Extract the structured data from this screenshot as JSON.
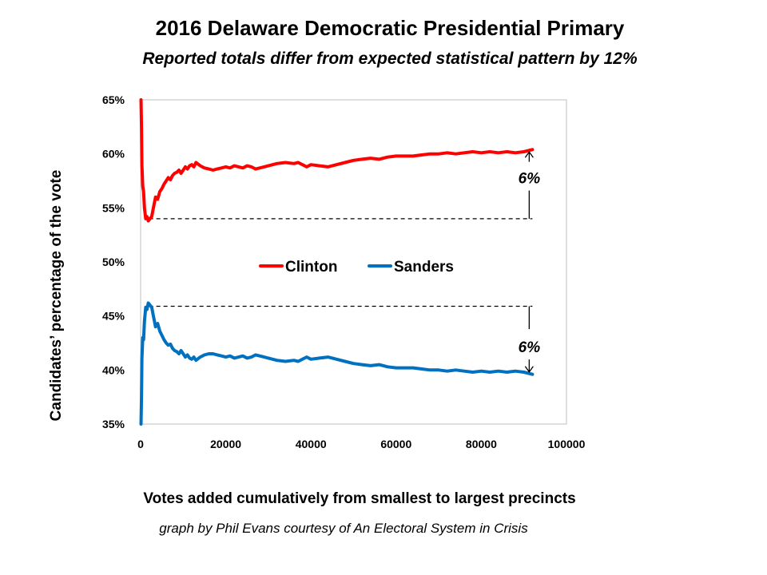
{
  "chart_data": {
    "type": "line",
    "title": "2016 Delaware Democratic Presidential Primary",
    "subtitle": "Reported totals differ from expected statistical pattern by 12%",
    "xlabel": "Votes added cumulatively from smallest to largest precincts",
    "ylabel": "Candidates’ percentage of the vote",
    "credit": "graph by Phil Evans courtesy of An Electoral System in Crisis",
    "xlim": [
      0,
      100000
    ],
    "ylim": [
      35,
      65
    ],
    "x_ticks": [
      "0",
      "20000",
      "40000",
      "60000",
      "80000",
      "100000"
    ],
    "y_ticks": [
      "35%",
      "40%",
      "45%",
      "50%",
      "55%",
      "60%",
      "65%"
    ],
    "grid": false,
    "legend": "center",
    "series": [
      {
        "name": "Clinton",
        "color": "#ff0000",
        "x": [
          100,
          200,
          300,
          500,
          700,
          900,
          1200,
          1500,
          1800,
          2200,
          2600,
          3000,
          3500,
          4000,
          4500,
          5000,
          5500,
          6000,
          6500,
          7000,
          7500,
          8000,
          8500,
          9000,
          9500,
          10000,
          10500,
          11000,
          11500,
          12000,
          12500,
          13000,
          14000,
          15000,
          16000,
          17000,
          18000,
          19000,
          20000,
          21000,
          22000,
          23000,
          24000,
          25000,
          26000,
          27000,
          28000,
          29000,
          30000,
          32000,
          34000,
          36000,
          37000,
          38000,
          39000,
          40000,
          42000,
          44000,
          46000,
          48000,
          50000,
          52000,
          54000,
          56000,
          58000,
          60000,
          62000,
          64000,
          66000,
          68000,
          70000,
          72000,
          74000,
          76000,
          78000,
          80000,
          82000,
          84000,
          86000,
          88000,
          90000,
          92000
        ],
        "values": [
          65,
          62.5,
          59,
          57,
          56.5,
          55,
          54,
          54.2,
          53.8,
          54,
          54.2,
          55,
          56,
          55.8,
          56.5,
          56.8,
          57.2,
          57.5,
          57.8,
          57.6,
          58,
          58.2,
          58.3,
          58.5,
          58.2,
          58.5,
          58.8,
          58.6,
          58.9,
          59,
          58.8,
          59.2,
          58.9,
          58.7,
          58.6,
          58.5,
          58.6,
          58.7,
          58.8,
          58.7,
          58.9,
          58.8,
          58.7,
          58.9,
          58.8,
          58.6,
          58.7,
          58.8,
          58.9,
          59.1,
          59.2,
          59.1,
          59.2,
          59,
          58.8,
          59,
          58.9,
          58.8,
          59,
          59.2,
          59.4,
          59.5,
          59.6,
          59.5,
          59.7,
          59.8,
          59.8,
          59.8,
          59.9,
          60,
          60,
          60.1,
          60,
          60.1,
          60.2,
          60.1,
          60.2,
          60.1,
          60.2,
          60.1,
          60.2,
          60.4
        ]
      },
      {
        "name": "Sanders",
        "color": "#0070c0",
        "x": [
          100,
          200,
          300,
          500,
          700,
          900,
          1200,
          1500,
          1800,
          2200,
          2600,
          3000,
          3500,
          4000,
          4500,
          5000,
          5500,
          6000,
          6500,
          7000,
          7500,
          8000,
          8500,
          9000,
          9500,
          10000,
          10500,
          11000,
          11500,
          12000,
          12500,
          13000,
          14000,
          15000,
          16000,
          17000,
          18000,
          19000,
          20000,
          21000,
          22000,
          23000,
          24000,
          25000,
          26000,
          27000,
          28000,
          29000,
          30000,
          32000,
          34000,
          36000,
          37000,
          38000,
          39000,
          40000,
          42000,
          44000,
          46000,
          48000,
          50000,
          52000,
          54000,
          56000,
          58000,
          60000,
          62000,
          64000,
          66000,
          68000,
          70000,
          72000,
          74000,
          76000,
          78000,
          80000,
          82000,
          84000,
          86000,
          88000,
          90000,
          92000
        ],
        "values": [
          35,
          37.5,
          41,
          43,
          42.8,
          44.5,
          45.8,
          45.6,
          46.2,
          46,
          45.8,
          45,
          44,
          44.3,
          43.6,
          43.2,
          42.8,
          42.5,
          42.3,
          42.4,
          42,
          41.8,
          41.7,
          41.5,
          41.8,
          41.5,
          41.2,
          41.4,
          41.1,
          41,
          41.2,
          40.9,
          41.2,
          41.4,
          41.5,
          41.5,
          41.4,
          41.3,
          41.2,
          41.3,
          41.1,
          41.2,
          41.3,
          41.1,
          41.2,
          41.4,
          41.3,
          41.2,
          41.1,
          40.9,
          40.8,
          40.9,
          40.8,
          41,
          41.2,
          41,
          41.1,
          41.2,
          41,
          40.8,
          40.6,
          40.5,
          40.4,
          40.5,
          40.3,
          40.2,
          40.2,
          40.2,
          40.1,
          40,
          40,
          39.9,
          40,
          39.9,
          39.8,
          39.9,
          39.8,
          39.9,
          39.8,
          39.9,
          39.8,
          39.6
        ]
      }
    ],
    "annotations": [
      {
        "text": "6%",
        "series": "Clinton",
        "direction": "up",
        "x_from": 2000,
        "x_to": 92000,
        "y_baseline": 54,
        "y_end": 60.4
      },
      {
        "text": "6%",
        "series": "Sanders",
        "direction": "down",
        "x_from": 2000,
        "x_to": 92000,
        "y_baseline": 45.9,
        "y_end": 39.6
      }
    ]
  }
}
